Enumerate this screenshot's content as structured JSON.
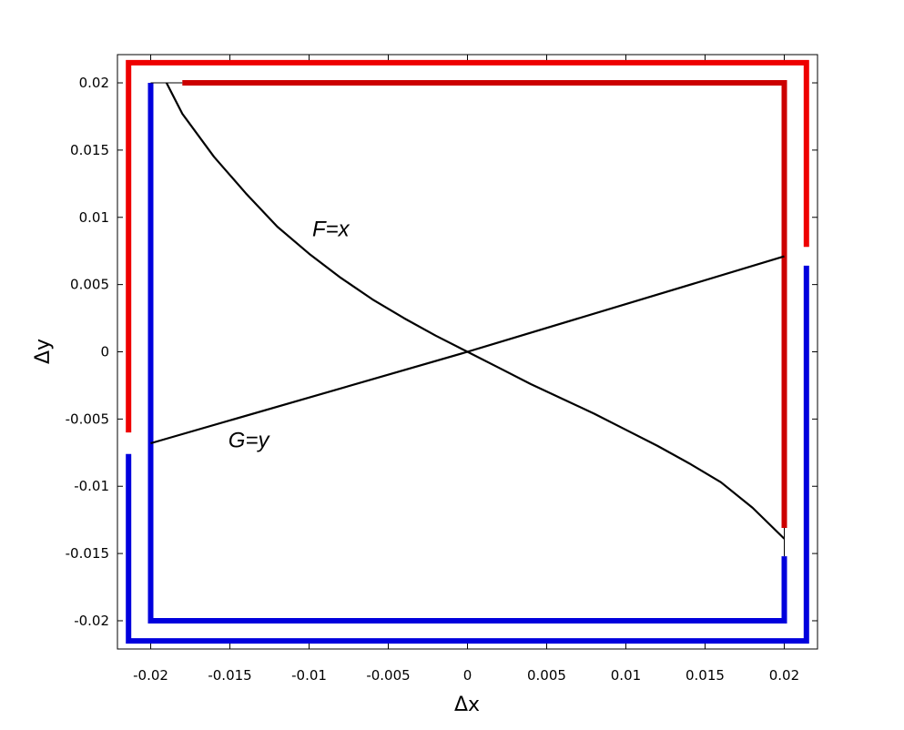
{
  "chart_data": {
    "type": "line",
    "xlabel": "Δx",
    "ylabel": "Δy",
    "xlim": [
      -0.0221,
      0.0221
    ],
    "ylim": [
      -0.0221,
      0.0221
    ],
    "grid": false,
    "x_ticks": [
      {
        "value": -0.02,
        "label": "-0.02"
      },
      {
        "value": -0.015,
        "label": "-0.015"
      },
      {
        "value": -0.01,
        "label": "-0.01"
      },
      {
        "value": -0.005,
        "label": "-0.005"
      },
      {
        "value": 0,
        "label": "0"
      },
      {
        "value": 0.005,
        "label": "0.005"
      },
      {
        "value": 0.01,
        "label": "0.01"
      },
      {
        "value": 0.015,
        "label": "0.015"
      },
      {
        "value": 0.02,
        "label": "0.02"
      }
    ],
    "y_ticks": [
      {
        "value": 0.02,
        "label": "0.02"
      },
      {
        "value": 0.015,
        "label": "0.015"
      },
      {
        "value": 0.01,
        "label": "0.01"
      },
      {
        "value": 0.005,
        "label": "0.005"
      },
      {
        "value": 0,
        "label": "0"
      },
      {
        "value": -0.005,
        "label": "-0.005"
      },
      {
        "value": -0.01,
        "label": "-0.01"
      },
      {
        "value": -0.015,
        "label": "-0.015"
      },
      {
        "value": -0.02,
        "label": "-0.02"
      }
    ],
    "curves": [
      {
        "label": "F=x",
        "color": "#000000",
        "points": [
          [
            -0.019,
            0.02
          ],
          [
            -0.018,
            0.0177
          ],
          [
            -0.016,
            0.0145
          ],
          [
            -0.014,
            0.0118
          ],
          [
            -0.012,
            0.0093
          ],
          [
            -0.01,
            0.0073
          ],
          [
            -0.008,
            0.0055
          ],
          [
            -0.006,
            0.0039
          ],
          [
            -0.004,
            0.0025
          ],
          [
            -0.002,
            0.0012
          ],
          [
            0,
            0
          ],
          [
            0.002,
            -0.0012
          ],
          [
            0.004,
            -0.0024
          ],
          [
            0.006,
            -0.0035
          ],
          [
            0.008,
            -0.0046
          ],
          [
            0.01,
            -0.0058
          ],
          [
            0.012,
            -0.007
          ],
          [
            0.014,
            -0.0083
          ],
          [
            0.016,
            -0.0097
          ],
          [
            0.018,
            -0.0116
          ],
          [
            0.02,
            -0.0139
          ]
        ]
      },
      {
        "label": "G=y",
        "color": "#000000",
        "points": [
          [
            -0.02,
            -0.0068
          ],
          [
            0,
            0
          ],
          [
            0.02,
            0.0071
          ]
        ]
      }
    ],
    "boundary_segments": [
      {
        "color": "#ee0000",
        "points": [
          [
            -0.0214,
            -0.006
          ],
          [
            -0.0214,
            0.0215
          ],
          [
            0.0214,
            0.0215
          ],
          [
            0.0214,
            0.0078
          ]
        ]
      },
      {
        "color": "#0000dd",
        "points": [
          [
            -0.0214,
            -0.0076
          ],
          [
            -0.0214,
            -0.0215
          ],
          [
            0.0214,
            -0.0215
          ],
          [
            0.0214,
            0.0064
          ]
        ]
      },
      {
        "color": "#cc0000",
        "points": [
          [
            -0.018,
            0.02
          ],
          [
            0.02,
            0.02
          ],
          [
            0.02,
            -0.0131
          ]
        ]
      },
      {
        "color": "#0000dd",
        "points": [
          [
            -0.02,
            0.02
          ],
          [
            -0.02,
            -0.02
          ],
          [
            0.02,
            -0.02
          ],
          [
            0.02,
            -0.0152
          ]
        ]
      }
    ],
    "thin_segments": [
      {
        "color": "#000000",
        "points": [
          [
            -0.02,
            0.02
          ],
          [
            -0.018,
            0.02
          ]
        ]
      },
      {
        "color": "#000000",
        "points": [
          [
            0.02,
            -0.0131
          ],
          [
            0.02,
            -0.0152
          ]
        ]
      }
    ],
    "annotations": [
      {
        "text": "F=x",
        "x": -0.0098,
        "y": 0.0086
      },
      {
        "text": "G=y",
        "x": -0.0151,
        "y": -0.0071
      }
    ]
  }
}
